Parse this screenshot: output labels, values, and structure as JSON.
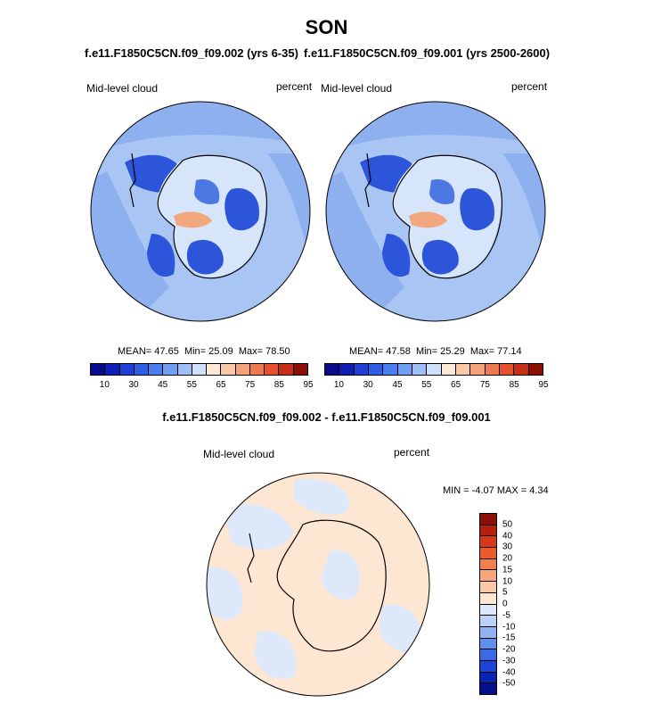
{
  "season": "SON",
  "panels": [
    {
      "run": "f.e11.F1850C5CN.f09_f09.002 (yrs 6-35)",
      "variable": "Mid-level cloud",
      "units": "percent",
      "mean_label": "MEAN=",
      "mean": "47.65",
      "min_label": "Min=",
      "min": "25.09",
      "max_label": "Max=",
      "max": "78.50"
    },
    {
      "run": "f.e11.F1850C5CN.f09_f09.001 (yrs 2500-2600)",
      "variable": "Mid-level cloud",
      "units": "percent",
      "mean_label": "MEAN=",
      "mean": "47.58",
      "min_label": "Min=",
      "min": "25.29",
      "max_label": "Max=",
      "max": "77.14"
    }
  ],
  "colorbar": {
    "colors": [
      "#0a0a8c",
      "#0f1fb4",
      "#1f3fd8",
      "#2e5ee6",
      "#4a7ef0",
      "#6f9ff3",
      "#9fc0f7",
      "#cfe0fb",
      "#fde9d6",
      "#f8c8a8",
      "#f4a27a",
      "#ef7a52",
      "#e8502e",
      "#c82e18",
      "#8c0f06"
    ],
    "labels": [
      "10",
      "30",
      "45",
      "55",
      "65",
      "75",
      "85",
      "95"
    ]
  },
  "difference": {
    "title": "f.e11.F1850C5CN.f09_f09.002 - f.e11.F1850C5CN.f09_f09.001",
    "variable": "Mid-level cloud",
    "units": "percent",
    "min_label": "MIN =",
    "min": "-4.07",
    "max_label": "MAX =",
    "max": "4.34",
    "colorbar_colors": [
      "#8c0f06",
      "#b81e0c",
      "#d83818",
      "#ec5a2c",
      "#f47e4e",
      "#f8a57a",
      "#fcc9a6",
      "#fde6d2",
      "#dde9fb",
      "#bcd3f8",
      "#8fb3f3",
      "#6090ee",
      "#3a6ae6",
      "#1c44d6",
      "#0a24b4",
      "#04108c"
    ],
    "colorbar_labels": [
      "50",
      "40",
      "30",
      "20",
      "15",
      "10",
      "5",
      "0",
      "-5",
      "-10",
      "-15",
      "-20",
      "-30",
      "-40",
      "-50"
    ]
  },
  "map_colors": {
    "ocean_light": "#a9c5f4",
    "ocean_mid": "#8fb0ef",
    "blue_dark": "#2c55d9",
    "blue_med": "#4d78e3",
    "land_light": "#d7e5fa",
    "warm": "#f2a77e",
    "diff_warm": "#fde6d2",
    "diff_cool": "#dde9fb"
  }
}
